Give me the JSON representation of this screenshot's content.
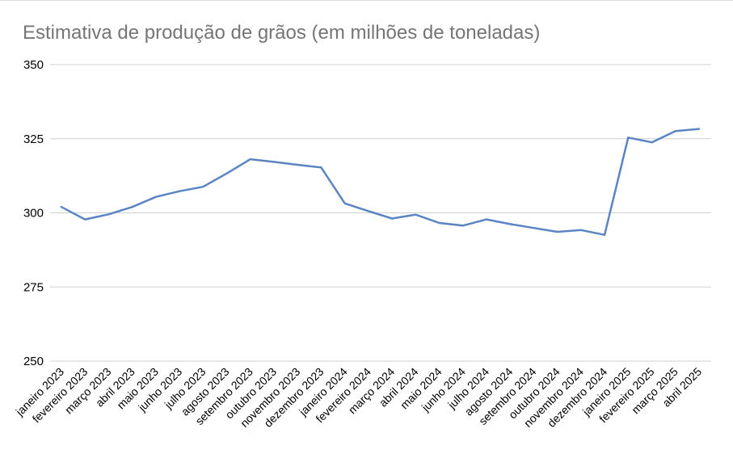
{
  "chart_data": {
    "type": "line",
    "title": "Estimativa de produção de grãos (em milhões de toneladas)",
    "xlabel": "",
    "ylabel": "",
    "ylim": [
      250,
      350
    ],
    "yticks": [
      250,
      275,
      300,
      325,
      350
    ],
    "grid": true,
    "legend": "none",
    "colors": {
      "line": "#5b84c4",
      "grid": "#d0d0d0",
      "title": "#757575"
    },
    "categories": [
      "janeiro 2023",
      "fevereiro 2023",
      "março 2023",
      "abril 2023",
      "maio 2023",
      "junho 2023",
      "julho 2023",
      "agosto 2023",
      "setembro 2023",
      "outubro 2023",
      "novembro 2023",
      "dezembro 2023",
      "janeiro 2024",
      "fevereiro 2024",
      "março 2024",
      "abril 2024",
      "maio 2024",
      "junho 2024",
      "julho 2024",
      "agosto 2024",
      "setembro 2024",
      "outubro 2024",
      "novembro 2024",
      "dezembro 2024",
      "janeiro 2025",
      "fevereiro 2025",
      "março 2025",
      "abril 2025"
    ],
    "series": [
      {
        "values": [
          302.0,
          297.8,
          299.5,
          302.0,
          305.4,
          307.3,
          308.8,
          313.3,
          318.1,
          317.2,
          316.2,
          315.3,
          303.2,
          300.6,
          298.1,
          299.4,
          296.6,
          295.7,
          297.8,
          296.2,
          294.9,
          293.6,
          294.2,
          292.6,
          325.4,
          323.8,
          327.6,
          328.3
        ]
      }
    ]
  }
}
